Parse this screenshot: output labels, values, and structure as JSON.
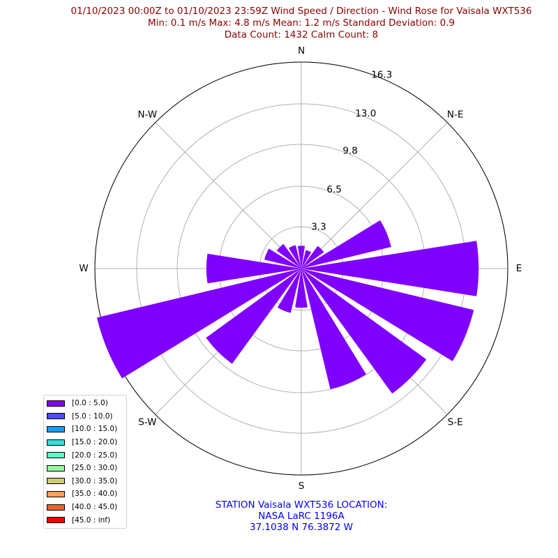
{
  "title": {
    "line1": "01/10/2023 00:00Z to 01/10/2023 23:59Z Wind Speed / Direction - Wind Rose for Vaisala WXT536",
    "line2": "Min: 0.1 m/s   Max: 4.8 m/s   Mean: 1.2 m/s  Standard Deviation: 0.9",
    "line3": "Data Count: 1432  Calm Count:  8"
  },
  "footer": {
    "line1": "STATION Vaisala WXT536 LOCATION:",
    "line2": "NASA LaRC 1196A",
    "line3": "37.1038 N 76.3872 W"
  },
  "colors": {
    "title": "#8b0000",
    "footer": "#0000ff",
    "bar": "#7f00ff",
    "grid": "#b0b0b0"
  },
  "chart_data": {
    "type": "wind_rose",
    "directions": [
      "N",
      "NNE",
      "NE",
      "ENE",
      "E",
      "ESE",
      "SE",
      "SSE",
      "S",
      "SSW",
      "SW",
      "WSW",
      "W",
      "WNW",
      "NW",
      "NNW"
    ],
    "compass_labels": [
      {
        "label": "N",
        "angle": 0
      },
      {
        "label": "N-E",
        "angle": 45
      },
      {
        "label": "E",
        "angle": 90
      },
      {
        "label": "S-E",
        "angle": 135
      },
      {
        "label": "S",
        "angle": 180
      },
      {
        "label": "S-W",
        "angle": 225
      },
      {
        "label": "W",
        "angle": 270
      },
      {
        "label": "N-W",
        "angle": 315
      }
    ],
    "radial_ticks": [
      "3.3",
      "6.5",
      "9.8",
      "13.0",
      "16.3"
    ],
    "r_max": 16.3,
    "series": [
      {
        "bin": "[0.0 : 5.0)",
        "values": [
          1.8,
          1.5,
          2.2,
          7.3,
          14.0,
          14.0,
          12.2,
          9.8,
          3.1,
          3.6,
          9.3,
          16.6,
          7.5,
          3.0,
          2.4,
          1.9
        ]
      }
    ],
    "legend": [
      {
        "label": "[0.0 : 5.0)",
        "color": "#7f00ff"
      },
      {
        "label": "[5.0 : 10.0)",
        "color": "#4d4dfc"
      },
      {
        "label": "[10.0 : 15.0)",
        "color": "#1a9ff0"
      },
      {
        "label": "[15.0 : 20.0)",
        "color": "#2ee0d8"
      },
      {
        "label": "[20.0 : 25.0)",
        "color": "#62fbc4"
      },
      {
        "label": "[25.0 : 30.0)",
        "color": "#96fb9c"
      },
      {
        "label": "[30.0 : 35.0)",
        "color": "#cccc77"
      },
      {
        "label": "[35.0 : 40.0)",
        "color": "#ff9f5a"
      },
      {
        "label": "[40.0 : 45.0)",
        "color": "#ff5a32"
      },
      {
        "label": "[45.0 : inf)",
        "color": "#ff0000"
      }
    ],
    "legend_position": "lower-left"
  }
}
